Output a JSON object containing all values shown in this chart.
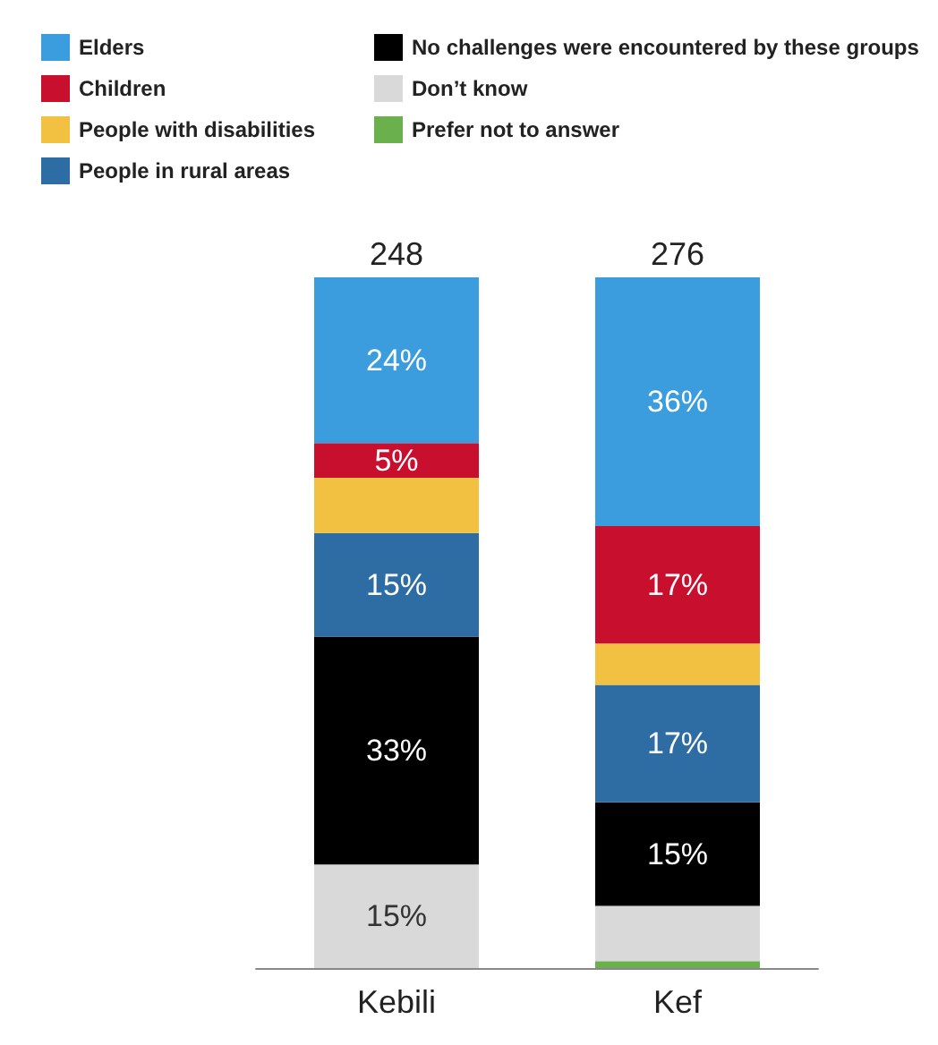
{
  "chart_data": {
    "type": "bar",
    "stacked": true,
    "categories": [
      "Kebili",
      "Kef"
    ],
    "annotations": [
      {
        "text": "248",
        "x": "Kebili",
        "y": 100
      },
      {
        "text": "276",
        "x": "Kef",
        "y": 100
      }
    ],
    "legend": "top left",
    "series": [
      {
        "name": "Prefer not to answer",
        "color": "#6ab04c",
        "values": [
          0,
          1
        ],
        "value_labels": [
          null,
          null
        ]
      },
      {
        "name": "Don’t know",
        "color": "#d9d9d9",
        "values": [
          15,
          8
        ],
        "value_labels": [
          "15%",
          null
        ]
      },
      {
        "name": "No challenges were encountered by these groups",
        "color": "#000000",
        "values": [
          33,
          15
        ],
        "value_labels": [
          "33%",
          "15%"
        ]
      },
      {
        "name": "People in rural areas",
        "color": "#2e6da4",
        "values": [
          15,
          17
        ],
        "value_labels": [
          "15%",
          "17%"
        ]
      },
      {
        "name": "People with disabilities",
        "color": "#f2c142",
        "values": [
          8,
          6
        ],
        "value_labels": [
          null,
          null
        ]
      },
      {
        "name": "Children",
        "color": "#c8102e",
        "values": [
          5,
          17
        ],
        "value_labels": [
          "5%",
          "17%"
        ]
      },
      {
        "name": "Elders",
        "color": "#3b9ddd",
        "values": [
          24,
          36
        ],
        "value_labels": [
          "24%",
          "36%"
        ]
      }
    ]
  }
}
